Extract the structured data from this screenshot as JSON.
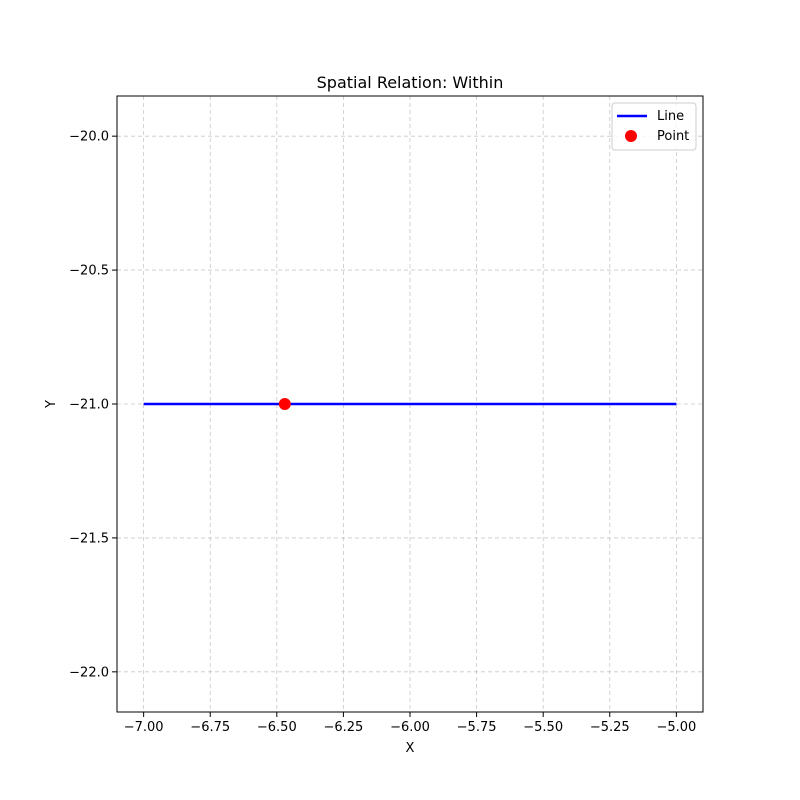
{
  "chart_data": {
    "type": "line",
    "title": "Spatial Relation: Within",
    "xlabel": "X",
    "ylabel": "Y",
    "xlim": [
      -7.1,
      -4.9
    ],
    "ylim": [
      -22.15,
      -19.85
    ],
    "x_ticks": [
      -7.0,
      -6.75,
      -6.5,
      -6.25,
      -6.0,
      -5.75,
      -5.5,
      -5.25,
      -5.0
    ],
    "x_tick_labels": [
      "−7.00",
      "−6.75",
      "−6.50",
      "−6.25",
      "−6.00",
      "−5.75",
      "−5.50",
      "−5.25",
      "−5.00"
    ],
    "y_ticks": [
      -20.0,
      -20.5,
      -21.0,
      -21.5,
      -22.0
    ],
    "y_tick_labels": [
      "−20.0",
      "−20.5",
      "−21.0",
      "−21.5",
      "−22.0"
    ],
    "grid": true,
    "legend_position": "top-right",
    "series": [
      {
        "name": "Line",
        "kind": "line",
        "color": "#0000ff",
        "x": [
          -7.0,
          -5.0
        ],
        "y": [
          -21.0,
          -21.0
        ]
      },
      {
        "name": "Point",
        "kind": "scatter",
        "color": "#ff0000",
        "x": [
          -6.47
        ],
        "y": [
          -21.0
        ]
      }
    ]
  }
}
